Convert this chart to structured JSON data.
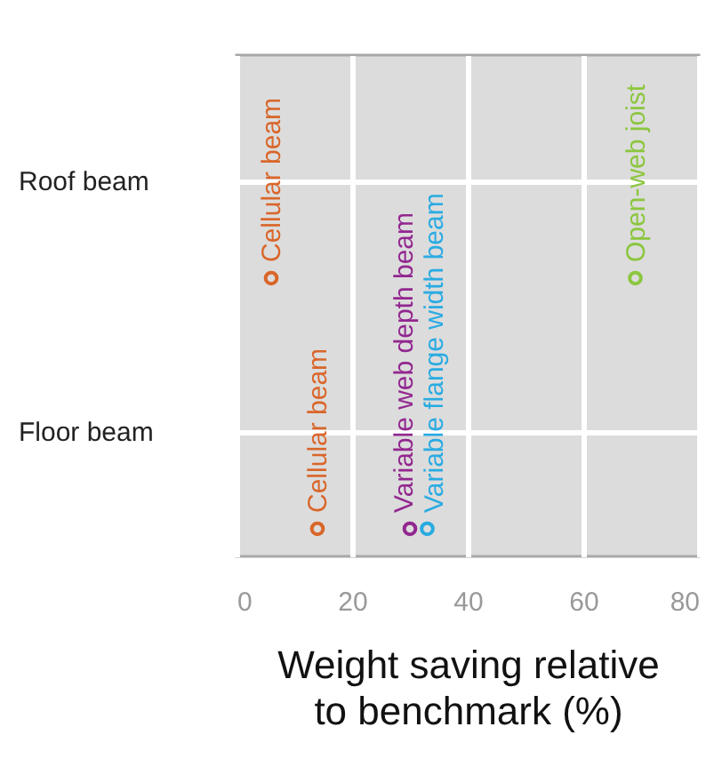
{
  "chart_data": {
    "type": "scatter",
    "orientation": "horizontal",
    "categories": [
      "Roof beam",
      "Floor beam"
    ],
    "xlabel": "Weight saving relative to benchmark (%)",
    "xlim": [
      0,
      80
    ],
    "xticks": [
      0,
      20,
      40,
      60,
      80
    ],
    "grid": true,
    "marker": "circle",
    "series": [
      {
        "name": "Cellular beam",
        "color": "#d9662a",
        "values": [
          6,
          14
        ]
      },
      {
        "name": "Variable web depth beam",
        "color": "#92278f",
        "values": [
          null,
          30
        ]
      },
      {
        "name": "Variable flange width beam",
        "color": "#29abe2",
        "values": [
          null,
          33
        ]
      },
      {
        "name": "Open-web joist",
        "color": "#8cc63f",
        "values": [
          69,
          null
        ]
      }
    ]
  }
}
